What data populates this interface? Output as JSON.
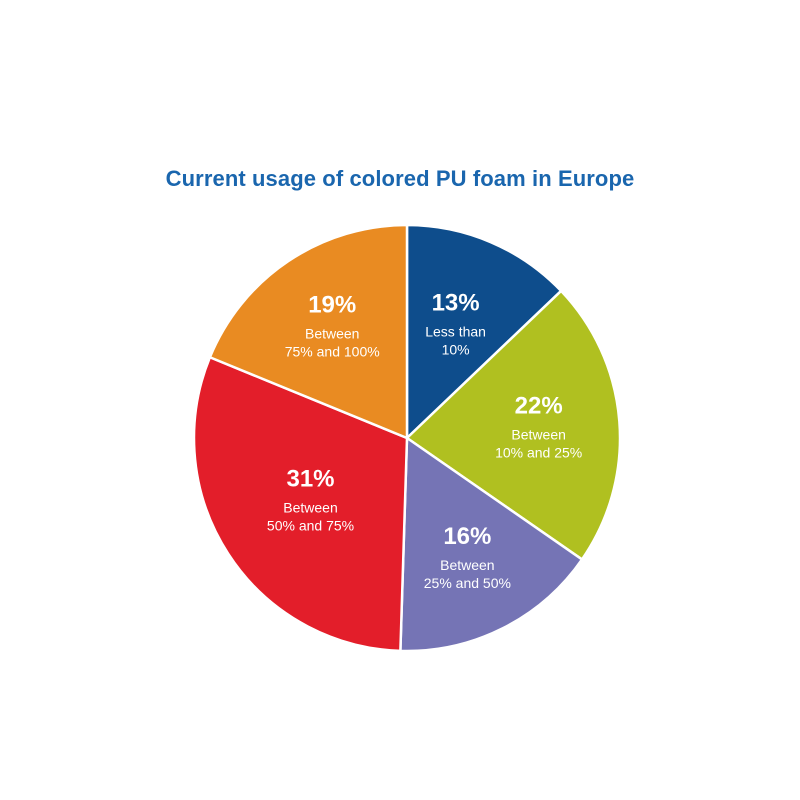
{
  "chart_data": {
    "type": "pie",
    "title": "Current usage of colored PU foam in Europe",
    "slices": [
      {
        "value": 13,
        "pct_label": "13%",
        "label_lines": [
          "Less than",
          "10%"
        ],
        "color": "#0e4d8c"
      },
      {
        "value": 22,
        "pct_label": "22%",
        "label_lines": [
          "Between",
          "10% and 25%"
        ],
        "color": "#b0c020"
      },
      {
        "value": 16,
        "pct_label": "16%",
        "label_lines": [
          "Between",
          "25% and 50%"
        ],
        "color": "#7574b5"
      },
      {
        "value": 31,
        "pct_label": "31%",
        "label_lines": [
          "Between",
          "50% and 75%"
        ],
        "color": "#e31e2a"
      },
      {
        "value": 19,
        "pct_label": "19%",
        "label_lines": [
          "Between",
          "75% and 100%"
        ],
        "color": "#e98b22"
      }
    ]
  }
}
